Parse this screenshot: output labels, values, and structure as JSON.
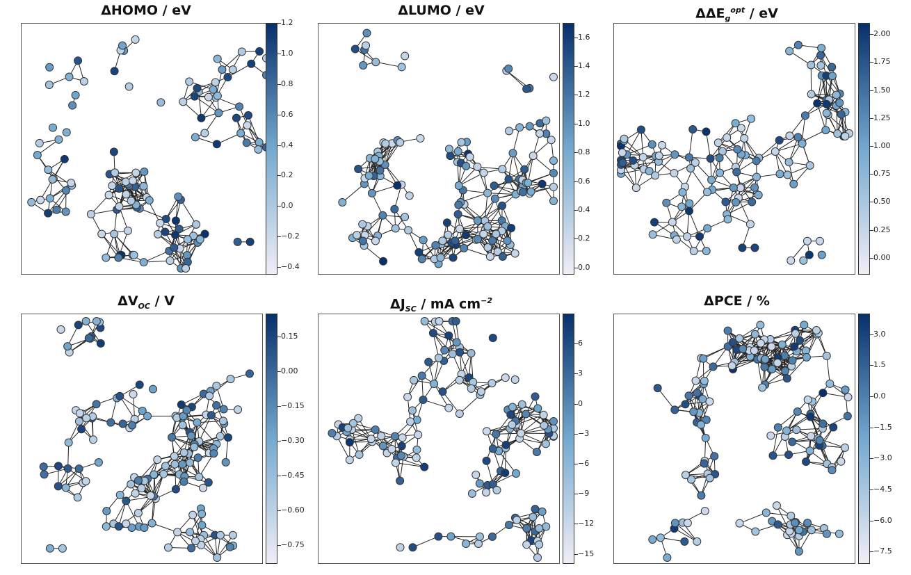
{
  "colors": {
    "node_low": "#f1eef6",
    "node_mid": "#74a9cf",
    "node_high": "#08306b",
    "edge": "#222222",
    "node_stroke": "#333333"
  },
  "chart_data": [
    {
      "type": "network",
      "title_prefix": "ΔHOMO",
      "title_sub": "",
      "title_sup": "",
      "title_suffix": " / eV",
      "colorbar": {
        "min": -0.45,
        "max": 1.2,
        "ticks": [
          "1.2",
          "1.0",
          "0.8",
          "0.6",
          "0.4",
          "0.2",
          "0.0",
          "−0.2",
          "−0.4"
        ],
        "tick_values": [
          1.2,
          1.0,
          0.8,
          0.6,
          0.4,
          0.2,
          0.0,
          -0.2,
          -0.4
        ]
      }
    },
    {
      "type": "network",
      "title_prefix": "ΔLUMO",
      "title_sub": "",
      "title_sup": "",
      "title_suffix": " / eV",
      "colorbar": {
        "min": -0.05,
        "max": 1.7,
        "ticks": [
          "1.6",
          "1.4",
          "1.2",
          "1.0",
          "0.8",
          "0.6",
          "0.4",
          "0.2",
          "0.0"
        ],
        "tick_values": [
          1.6,
          1.4,
          1.2,
          1.0,
          0.8,
          0.6,
          0.4,
          0.2,
          0.0
        ]
      }
    },
    {
      "type": "network",
      "title_prefix": "ΔΔE",
      "title_sub": "g",
      "title_sup": "opt",
      "title_suffix": "  / eV",
      "colorbar": {
        "min": -0.15,
        "max": 2.1,
        "ticks": [
          "2.00",
          "1.75",
          "1.50",
          "1.25",
          "1.00",
          "0.75",
          "0.50",
          "0.25",
          "0.00"
        ],
        "tick_values": [
          2.0,
          1.75,
          1.5,
          1.25,
          1.0,
          0.75,
          0.5,
          0.25,
          0.0
        ]
      }
    },
    {
      "type": "network",
      "title_prefix": "ΔV",
      "title_sub": "OC",
      "title_sup": "",
      "title_suffix": " / V",
      "colorbar": {
        "min": -0.83,
        "max": 0.25,
        "ticks": [
          "0.15",
          "0.00",
          "−0.15",
          "−0.30",
          "−0.45",
          "−0.60",
          "−0.75"
        ],
        "tick_values": [
          0.15,
          0.0,
          -0.15,
          -0.3,
          -0.45,
          -0.6,
          -0.75
        ]
      }
    },
    {
      "type": "network",
      "title_prefix": "ΔJ",
      "title_sub": "SC",
      "title_sup": "",
      "title_suffix": " / mA cm",
      "title_suffix_sup": "−2",
      "colorbar": {
        "min": -16,
        "max": 9,
        "ticks": [
          "6",
          "3",
          "0",
          "−3",
          "−6",
          "−9",
          "−12",
          "−15"
        ],
        "tick_values": [
          6,
          3,
          0,
          -3,
          -6,
          -9,
          -12,
          -15
        ]
      }
    },
    {
      "type": "network",
      "title_prefix": "ΔPCE",
      "title_sub": "",
      "title_sup": "",
      "title_suffix": " / %",
      "colorbar": {
        "min": -8.1,
        "max": 4.0,
        "ticks": [
          "3.0",
          "1.5",
          "0.0",
          "−1.5",
          "−3.0",
          "−4.5",
          "−6.0",
          "−7.5"
        ],
        "tick_values": [
          3.0,
          1.5,
          0.0,
          -1.5,
          -3.0,
          -4.5,
          -6.0,
          -7.5
        ]
      }
    }
  ]
}
